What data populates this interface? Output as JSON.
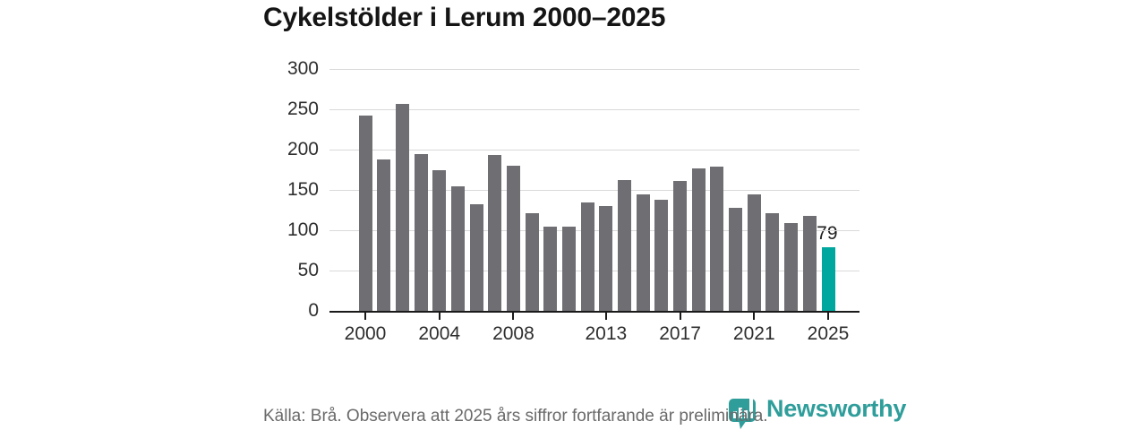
{
  "title": "Cykelstölder i Lerum 2000–2025",
  "chart_data": {
    "type": "bar",
    "title": "Cykelstölder i Lerum 2000–2025",
    "categories": [
      2000,
      2001,
      2002,
      2003,
      2004,
      2005,
      2006,
      2007,
      2008,
      2009,
      2010,
      2011,
      2012,
      2013,
      2014,
      2015,
      2016,
      2017,
      2018,
      2019,
      2020,
      2021,
      2022,
      2023,
      2024,
      2025
    ],
    "values": [
      242,
      188,
      257,
      195,
      175,
      155,
      132,
      193,
      180,
      121,
      105,
      105,
      135,
      130,
      162,
      144,
      138,
      161,
      177,
      179,
      128,
      145,
      121,
      109,
      118,
      79
    ],
    "highlight": {
      "year": 2025,
      "value": 79,
      "label": "79"
    },
    "x_tick_labels": [
      "2000",
      "2004",
      "2008",
      "2013",
      "2017",
      "2021",
      "2025"
    ],
    "y_ticks": [
      0,
      50,
      100,
      150,
      200,
      250,
      300
    ],
    "ylim": [
      0,
      300
    ],
    "grid": true,
    "legend": "none",
    "colors": {
      "bar": "#6e6e73",
      "highlight": "#00a79e",
      "grid": "#d9d9d9",
      "axis": "#1a1a1a",
      "tick_text": "#2e2e2e"
    }
  },
  "footer": {
    "source_text": "Källa: Brå. Observera att 2025 års siffror fortfarande är preliminära.",
    "brand": {
      "name": "Newsworthy",
      "color": "#2f9e9b"
    }
  }
}
